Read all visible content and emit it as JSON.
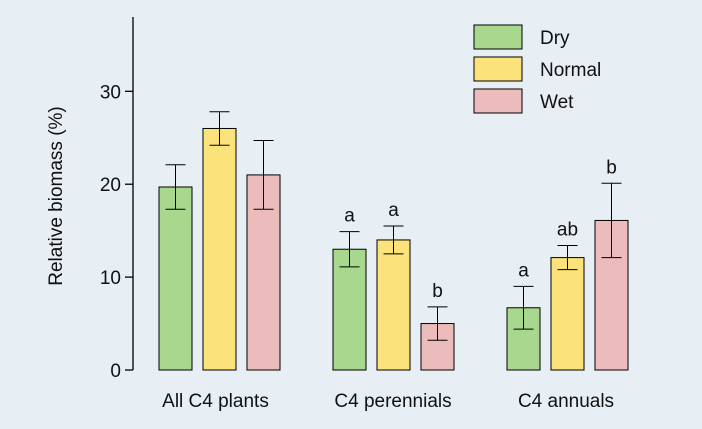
{
  "chart_data": {
    "type": "bar",
    "title": "",
    "xlabel": "",
    "ylabel": "Relative biomass (%)",
    "ylim": [
      0,
      38
    ],
    "yticks": [
      0,
      10,
      20,
      30
    ],
    "grid": false,
    "legend_position": "top-right",
    "categories": [
      "All C4 plants",
      "C4 perennials",
      "C4 annuals"
    ],
    "series": [
      {
        "name": "Dry",
        "color": "#a8d88e",
        "values": [
          19.7,
          13.0,
          6.7
        ],
        "errors": [
          2.4,
          1.9,
          2.3
        ],
        "labels": [
          "",
          "a",
          "a"
        ]
      },
      {
        "name": "Normal",
        "color": "#fce27a",
        "values": [
          26.0,
          14.0,
          12.1
        ],
        "errors": [
          1.8,
          1.5,
          1.3
        ],
        "labels": [
          "",
          "a",
          "ab"
        ]
      },
      {
        "name": "Wet",
        "color": "#ecbcbc",
        "values": [
          21.0,
          5.0,
          16.1
        ],
        "errors": [
          3.7,
          1.8,
          4.0
        ],
        "labels": [
          "",
          "b",
          "b"
        ]
      }
    ]
  }
}
